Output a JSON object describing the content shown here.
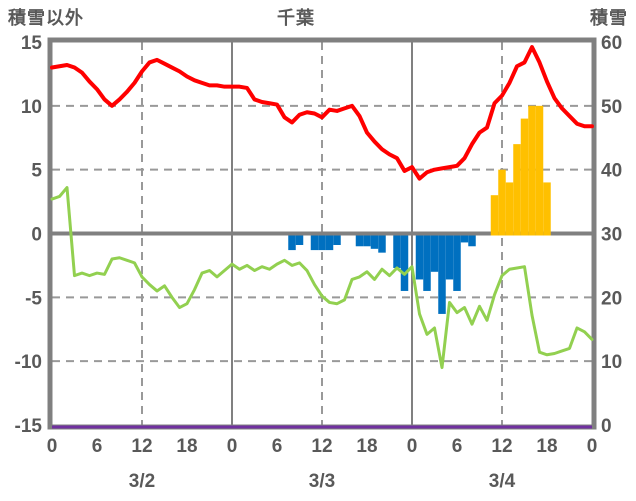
{
  "header": {
    "left_axis_title": "積雪以外",
    "chart_title": "千葉",
    "right_axis_title": "積雪"
  },
  "colors": {
    "background": "#FFFFFF",
    "text": "#595959",
    "axis_border": "#808080",
    "solid_gridline": "#808080",
    "dashed_gridline": "#999999",
    "red": "#FF0000",
    "green": "#92D050",
    "blue": "#0070C0",
    "orange": "#FFC000",
    "purple": "#7030A0"
  },
  "chart_data": {
    "type": "combo-line-bar",
    "title": "千葉",
    "left_axis": {
      "title": "積雪以外",
      "min": -15,
      "max": 15,
      "tick_step": 5,
      "tick_labels": [
        "15",
        "10",
        "5",
        "0",
        "-5",
        "-10",
        "-15"
      ]
    },
    "right_axis": {
      "title": "積雪",
      "min": 0,
      "max": 60,
      "tick_step": 10,
      "tick_labels": [
        "60",
        "50",
        "40",
        "30",
        "20",
        "10",
        "0"
      ]
    },
    "x_axis": {
      "total_hours": 72,
      "tick_interval_hours": 6,
      "hour_tick_labels": [
        "0",
        "6",
        "12",
        "18",
        "0",
        "6",
        "12",
        "18",
        "0",
        "6",
        "12",
        "18",
        "0"
      ],
      "day_labels": [
        {
          "label": "3/2",
          "center_hour": 12
        },
        {
          "label": "3/3",
          "center_hour": 36
        },
        {
          "label": "3/4",
          "center_hour": 60
        }
      ],
      "solid_gridline_hours": [
        24,
        48
      ],
      "dashed_gridline_hours": [
        12,
        36,
        60
      ],
      "dashed_gridline_values": [
        10,
        5,
        -5,
        -10
      ]
    },
    "series": [
      {
        "name": "red-line",
        "type": "line",
        "color": "#FF0000",
        "stroke_width": 4,
        "hourly_start": 0,
        "values": [
          13.0,
          13.1,
          13.2,
          13.0,
          12.6,
          11.9,
          11.3,
          10.5,
          10.0,
          10.5,
          11.1,
          11.8,
          12.7,
          13.4,
          13.6,
          13.3,
          13.0,
          12.7,
          12.3,
          12.0,
          11.8,
          11.6,
          11.6,
          11.5,
          11.5,
          11.5,
          11.4,
          10.5,
          10.3,
          10.2,
          10.1,
          9.1,
          8.7,
          9.3,
          9.5,
          9.4,
          9.1,
          9.7,
          9.6,
          9.8,
          10.0,
          9.2,
          7.9,
          7.2,
          6.6,
          6.2,
          5.9,
          4.9,
          5.2,
          4.3,
          4.8,
          5.0,
          5.1,
          5.2,
          5.3,
          5.9,
          7.0,
          7.9,
          8.3,
          10.2,
          10.8,
          11.8,
          13.1,
          13.4,
          14.6,
          13.4,
          11.9,
          10.6,
          9.8,
          9.2,
          8.6,
          8.4,
          8.4
        ]
      },
      {
        "name": "green-line",
        "type": "line",
        "color": "#92D050",
        "stroke_width": 3,
        "hourly_start": 0,
        "values": [
          2.7,
          2.9,
          3.6,
          -3.3,
          -3.1,
          -3.3,
          -3.1,
          -3.2,
          -2.0,
          -1.9,
          -2.1,
          -2.3,
          -3.4,
          -4.0,
          -4.5,
          -4.1,
          -5.0,
          -5.8,
          -5.5,
          -4.4,
          -3.1,
          -2.9,
          -3.4,
          -2.9,
          -2.4,
          -2.8,
          -2.5,
          -2.9,
          -2.6,
          -2.8,
          -2.4,
          -2.1,
          -2.5,
          -2.3,
          -2.9,
          -4.0,
          -4.9,
          -5.4,
          -5.5,
          -5.2,
          -3.6,
          -3.4,
          -3.0,
          -3.6,
          -2.8,
          -3.3,
          -2.7,
          -3.2,
          -2.6,
          -6.3,
          -7.9,
          -7.4,
          -10.5,
          -5.4,
          -6.2,
          -5.8,
          -7.1,
          -5.7,
          -6.8,
          -4.8,
          -3.3,
          -2.8,
          -2.7,
          -2.6,
          -6.4,
          -9.3,
          -9.5,
          -9.4,
          -9.2,
          -9.0,
          -7.4,
          -7.7,
          -8.3
        ]
      },
      {
        "name": "blue-bars",
        "type": "bar",
        "color": "#0070C0",
        "baseline": 0,
        "bars": [
          [
            32,
            -1.3
          ],
          [
            33,
            -0.9
          ],
          [
            35,
            -1.3
          ],
          [
            36,
            -1.3
          ],
          [
            37,
            -1.3
          ],
          [
            38,
            -0.9
          ],
          [
            41,
            -1.0
          ],
          [
            42,
            -1.0
          ],
          [
            43,
            -1.2
          ],
          [
            44,
            -1.5
          ],
          [
            46,
            -2.7
          ],
          [
            47,
            -4.5
          ],
          [
            49,
            -3.6
          ],
          [
            50,
            -4.5
          ],
          [
            51,
            -3.0
          ],
          [
            52,
            -6.3
          ],
          [
            53,
            -3.6
          ],
          [
            54,
            -4.5
          ],
          [
            55,
            -0.7
          ],
          [
            56,
            -1.0
          ]
        ]
      },
      {
        "name": "orange-bars",
        "type": "bar",
        "color": "#FFC000",
        "baseline": 0,
        "bars": [
          [
            59,
            3
          ],
          [
            60,
            5
          ],
          [
            61,
            4
          ],
          [
            62,
            7
          ],
          [
            63,
            9
          ],
          [
            64,
            10
          ],
          [
            65,
            10
          ],
          [
            66,
            4
          ]
        ]
      },
      {
        "name": "purple-line",
        "type": "line",
        "color": "#7030A0",
        "stroke_width": 3,
        "right_axis_value": 0,
        "points": [
          [
            0,
            -15
          ],
          [
            72,
            -15
          ]
        ]
      }
    ]
  }
}
